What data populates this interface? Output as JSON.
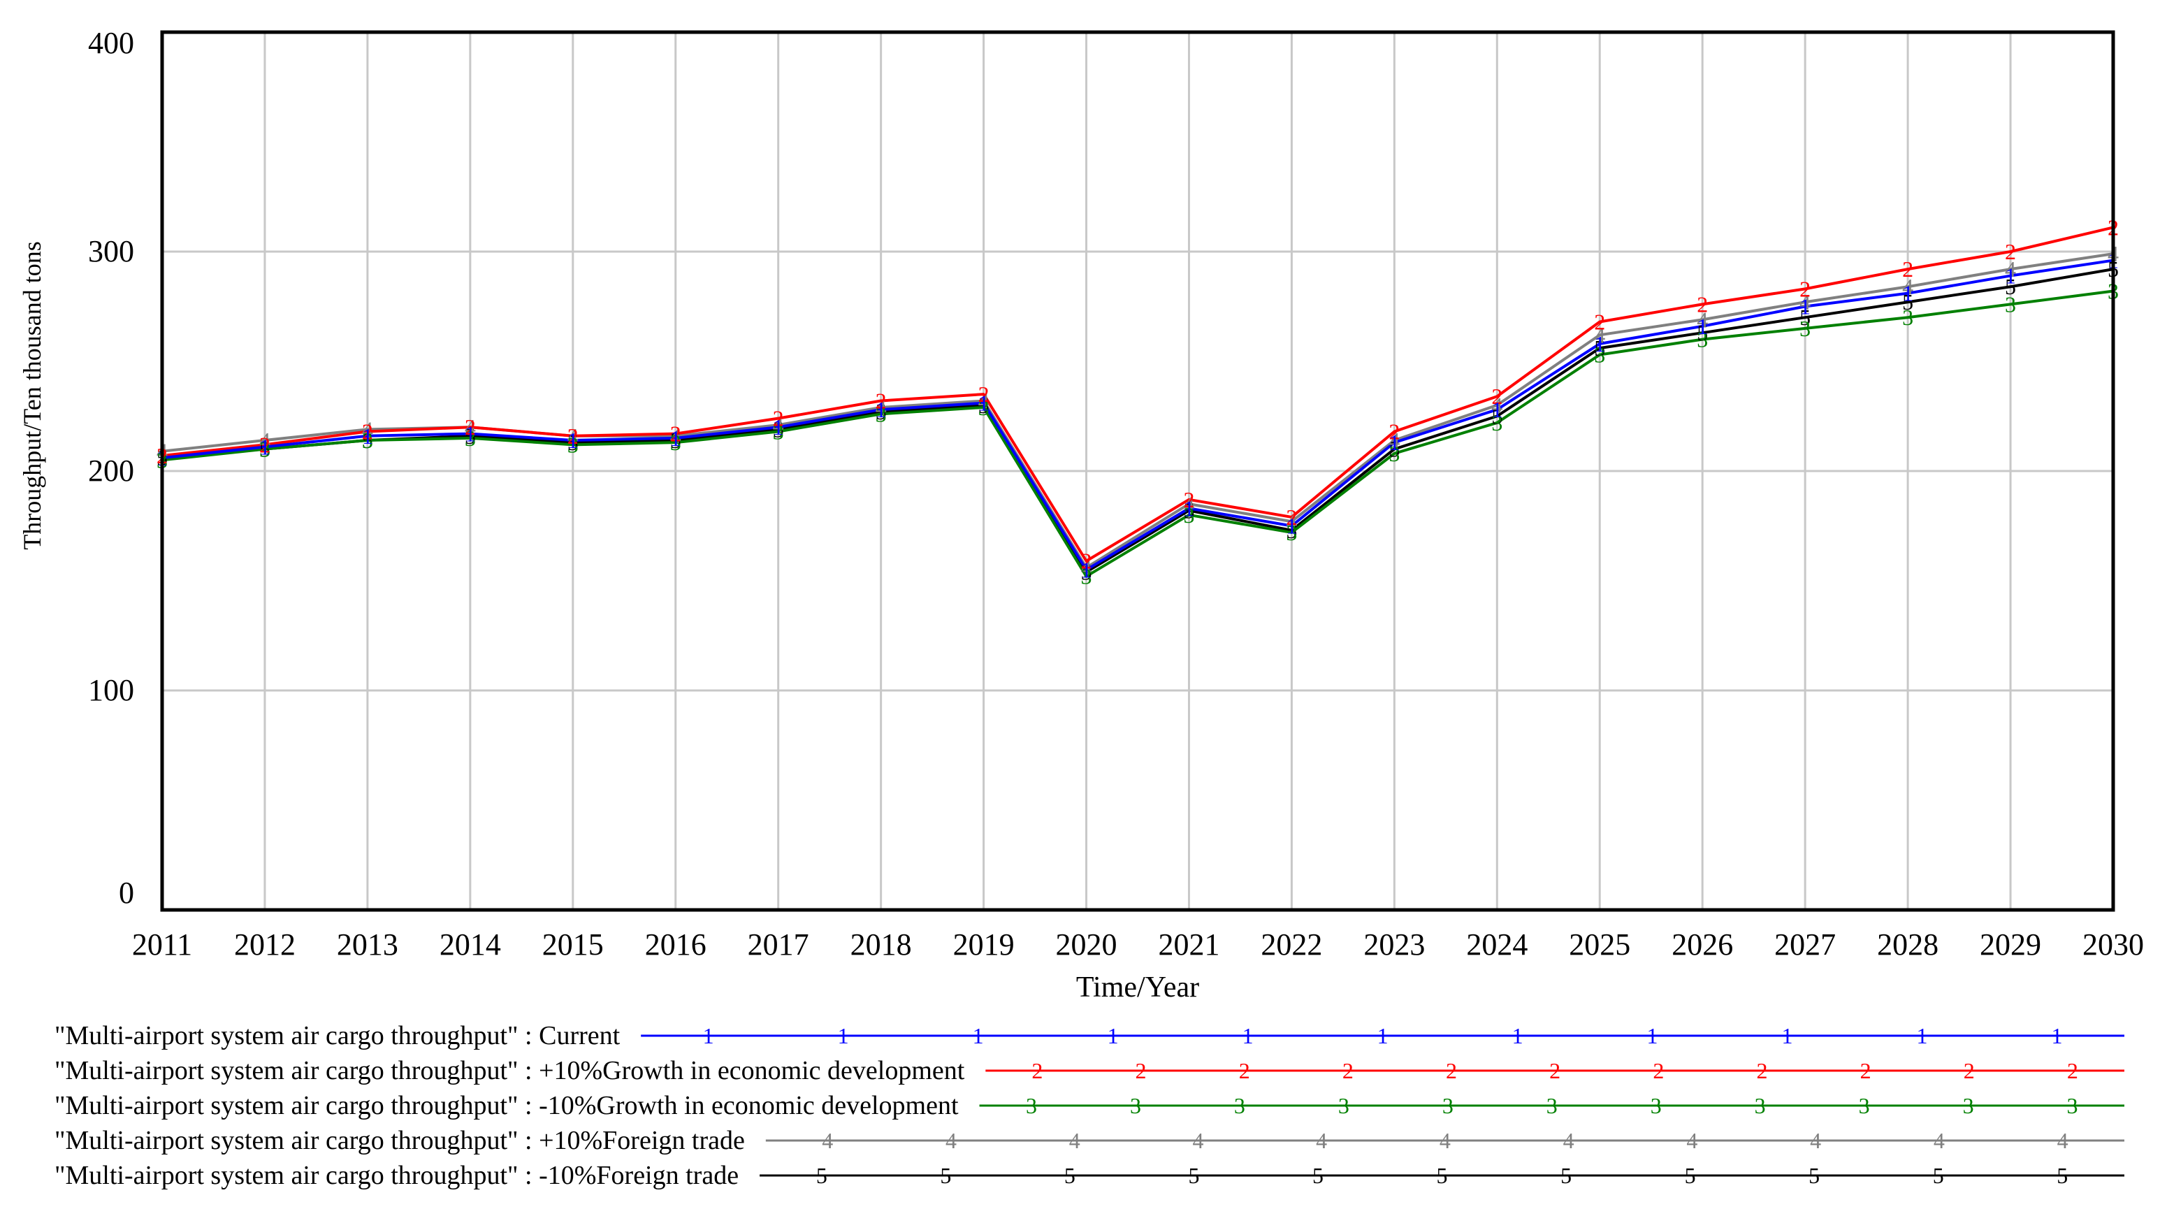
{
  "chart_data": {
    "type": "line",
    "title": "",
    "xlabel": "Time/Year",
    "ylabel": "Throughput/Ten thousand tons",
    "ylim": [
      0,
      400
    ],
    "xlim": [
      2011,
      2030
    ],
    "x": [
      2011,
      2012,
      2013,
      2014,
      2015,
      2016,
      2017,
      2018,
      2019,
      2020,
      2021,
      2022,
      2023,
      2024,
      2025,
      2026,
      2027,
      2028,
      2029,
      2030
    ],
    "x_ticks": [
      "2011",
      "2012",
      "2013",
      "2014",
      "2015",
      "2016",
      "2017",
      "2018",
      "2019",
      "2020",
      "2021",
      "2022",
      "2023",
      "2024",
      "2025",
      "2026",
      "2027",
      "2028",
      "2029",
      "2030"
    ],
    "y_ticks": [
      "0",
      "100",
      "200",
      "300",
      "400"
    ],
    "y_tick_values": [
      0,
      100,
      200,
      300,
      400
    ],
    "grid": true,
    "legend_position": "bottom",
    "series": [
      {
        "name": "\"Multi-airport system air cargo throughput\" : Current",
        "marker": "1",
        "color": "#0000ff",
        "values": [
          206,
          211,
          216,
          217,
          214,
          215,
          220,
          228,
          231,
          155,
          183,
          175,
          213,
          228,
          258,
          266,
          275,
          281,
          289,
          296
        ]
      },
      {
        "name": "\"Multi-airport system air cargo throughput\" : +10%Growth in economic development",
        "marker": "2",
        "color": "#ff0000",
        "values": [
          207,
          212,
          218,
          220,
          216,
          217,
          224,
          232,
          235,
          159,
          187,
          179,
          218,
          234,
          268,
          276,
          283,
          292,
          300,
          311
        ]
      },
      {
        "name": "\"Multi-airport system air cargo throughput\" : -10%Growth in economic development",
        "marker": "3",
        "color": "#008000",
        "values": [
          205,
          210,
          214,
          215,
          212,
          213,
          218,
          226,
          229,
          152,
          180,
          172,
          208,
          222,
          253,
          260,
          265,
          270,
          276,
          282
        ]
      },
      {
        "name": "\"Multi-airport system air cargo throughput\" : +10%Foreign trade",
        "marker": "4",
        "color": "#808080",
        "values": [
          209,
          214,
          219,
          220,
          216,
          216,
          221,
          229,
          232,
          156,
          185,
          177,
          214,
          230,
          262,
          269,
          277,
          284,
          292,
          299
        ]
      },
      {
        "name": "\"Multi-airport system air cargo throughput\" : -10%Foreign trade",
        "marker": "5",
        "color": "#000000",
        "values": [
          206,
          210,
          214,
          216,
          213,
          214,
          219,
          227,
          230,
          154,
          182,
          173,
          210,
          225,
          256,
          263,
          270,
          277,
          284,
          292
        ]
      }
    ]
  }
}
